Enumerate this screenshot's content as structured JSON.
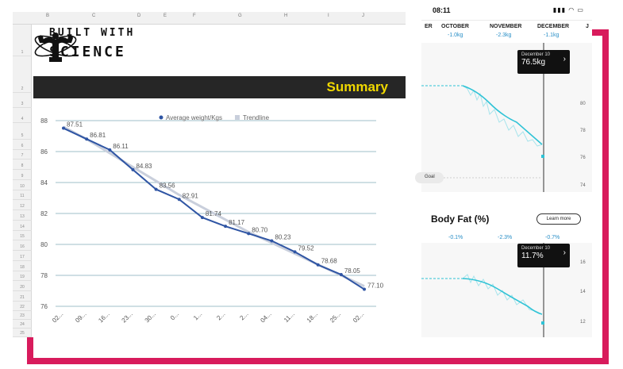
{
  "sheet": {
    "columns": [
      "B",
      "C",
      "D",
      "E",
      "F",
      "G",
      "H",
      "I",
      "J"
    ],
    "rows": [
      "1",
      "2",
      "3",
      "4",
      "5",
      "6",
      "7",
      "8",
      "9",
      "10",
      "11",
      "12",
      "13",
      "14",
      "15",
      "16",
      "17",
      "18",
      "19",
      "20",
      "21",
      "22",
      "23",
      "24",
      "25"
    ],
    "logo_line1": "BUILT WITH",
    "logo_line2": "SCIENCE",
    "summary_title": "Summary"
  },
  "chart_data": {
    "type": "line",
    "title": "",
    "xlabel": "",
    "ylabel": "",
    "ylim": [
      76,
      88
    ],
    "yticks": [
      76,
      78,
      80,
      82,
      84,
      86,
      88
    ],
    "categories": [
      "02...",
      "09...",
      "16...",
      "23...",
      "30...",
      "0...",
      "1...",
      "2...",
      "2...",
      "04...",
      "11...",
      "18...",
      "25...",
      "02..."
    ],
    "legend": [
      "Average weight/Kgs",
      "Trendline"
    ],
    "legend_position": "top",
    "grid": true,
    "series": [
      {
        "name": "Average weight/Kgs",
        "color": "#2f55a4",
        "values": [
          87.51,
          86.81,
          86.11,
          84.83,
          83.56,
          82.91,
          81.74,
          81.17,
          80.7,
          80.23,
          79.52,
          78.68,
          78.05,
          77.1
        ],
        "labels": [
          "87.51",
          "86.81",
          "86.11",
          "84.83",
          "83.56",
          "82.91",
          "81.74",
          "81.17",
          "80.70",
          "80.23",
          "79.52",
          "78.68",
          "78.05",
          "77.10"
        ]
      },
      {
        "name": "Trendline",
        "color": "#c9cfdc",
        "values": [
          87.6,
          86.8,
          85.9,
          85.0,
          84.1,
          83.2,
          82.4,
          81.6,
          80.8,
          80.1,
          79.4,
          78.7,
          78.0,
          77.3
        ]
      }
    ]
  },
  "phone": {
    "time": "08:11",
    "status_icons": "▮▮▮ ◠ ▭",
    "months": [
      "ER",
      "OCTOBER",
      "NOVEMBER",
      "DECEMBER",
      "J"
    ],
    "weight_deltas": [
      "-1.0kg",
      "-2.3kg",
      "-1.1kg"
    ],
    "weight_tooltip": {
      "date": "December 10",
      "value": "76.5kg"
    },
    "weight_yticks": [
      "80",
      "78",
      "76",
      "74"
    ],
    "goal_label": "Goal",
    "bodyfat_title": "Body Fat (%)",
    "learn_more": "Learn more",
    "bodyfat_deltas": [
      "-0.1%",
      "-2.3%",
      "-0.7%"
    ],
    "bodyfat_tooltip": {
      "date": "December 10",
      "value": "11.7%"
    },
    "bodyfat_yticks": [
      "16",
      "14",
      "12"
    ],
    "accent": "#2fc3d6",
    "frame_color": "#d81b5c"
  }
}
